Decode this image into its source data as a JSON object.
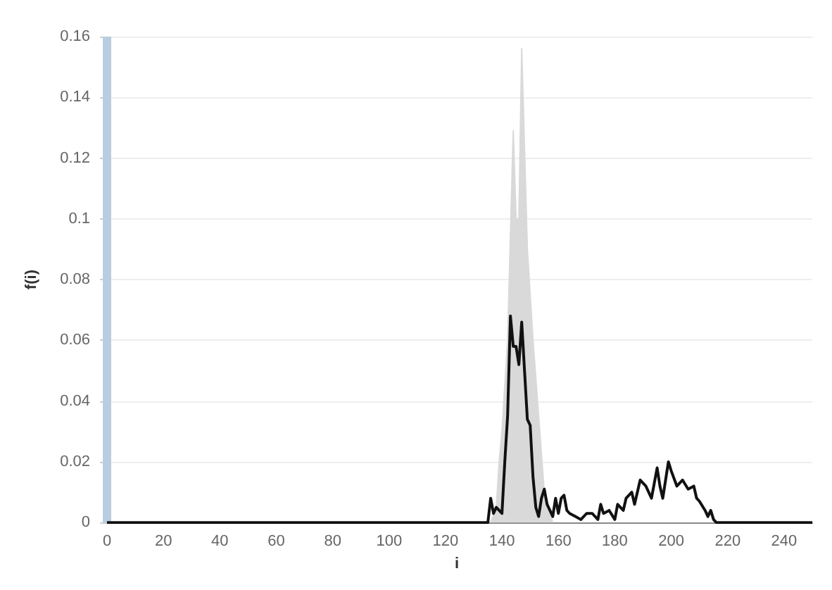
{
  "chart_data": {
    "type": "line",
    "xlabel": "i",
    "ylabel": "f(i)",
    "xlim": [
      -2,
      250
    ],
    "xticks": [
      0,
      20,
      40,
      60,
      80,
      100,
      120,
      140,
      160,
      180,
      200,
      220,
      240
    ],
    "ylim": [
      0,
      0.16
    ],
    "yticks": [
      0,
      0.02,
      0.04,
      0.06,
      0.08,
      0.1,
      0.12,
      0.14,
      0.16
    ],
    "grid": "y",
    "marker": "none",
    "bands": [
      {
        "axis": "x",
        "from": -1.5,
        "to": 1.5,
        "color": "#b8cde0"
      }
    ],
    "series": [
      {
        "type": "area",
        "color": "#d9d9d9",
        "x": [
          136,
          138,
          139,
          140,
          142,
          144,
          145,
          146,
          147,
          149,
          151,
          153,
          155,
          157,
          158
        ],
        "values": [
          0,
          0.005,
          0.02,
          0.03,
          0.06,
          0.129,
          0.1,
          0.1,
          0.156,
          0.09,
          0.06,
          0.035,
          0.01,
          0.003,
          0
        ]
      },
      {
        "color": "#111111",
        "x": [
          0,
          135,
          136,
          137,
          138,
          139,
          140,
          141,
          142,
          143,
          144,
          145,
          146,
          147,
          148,
          149,
          150,
          151,
          152,
          153,
          154,
          155,
          156,
          157,
          158,
          159,
          160,
          161,
          162,
          163,
          164,
          166,
          168,
          170,
          172,
          174,
          175,
          176,
          178,
          180,
          181,
          183,
          184,
          186,
          187,
          189,
          191,
          193,
          195,
          196,
          197,
          199,
          200,
          202,
          204,
          206,
          208,
          209,
          210,
          212,
          213,
          214,
          215,
          216,
          250
        ],
        "values": [
          0,
          0,
          0.008,
          0.003,
          0.005,
          0.004,
          0.003,
          0.02,
          0.035,
          0.068,
          0.058,
          0.058,
          0.052,
          0.066,
          0.05,
          0.034,
          0.032,
          0.015,
          0.005,
          0.002,
          0.008,
          0.011,
          0.006,
          0.004,
          0.002,
          0.008,
          0.003,
          0.008,
          0.009,
          0.004,
          0.003,
          0.002,
          0.001,
          0.003,
          0.003,
          0.001,
          0.006,
          0.003,
          0.004,
          0.001,
          0.006,
          0.004,
          0.008,
          0.01,
          0.006,
          0.014,
          0.012,
          0.008,
          0.018,
          0.012,
          0.008,
          0.02,
          0.017,
          0.012,
          0.014,
          0.011,
          0.012,
          0.008,
          0.007,
          0.004,
          0.002,
          0.004,
          0.001,
          0,
          0
        ]
      }
    ]
  }
}
